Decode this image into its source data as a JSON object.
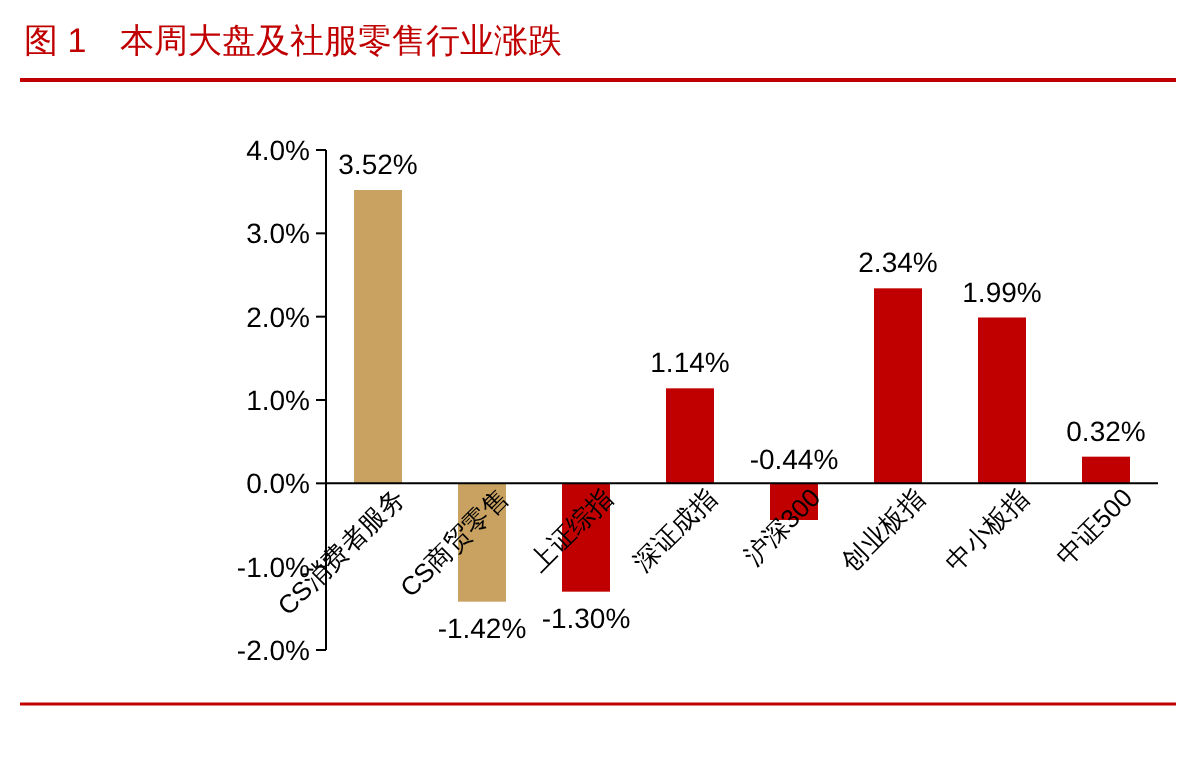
{
  "chart_data": {
    "type": "bar",
    "title": "图 1　本周大盘及社服零售行业涨跌",
    "categories": [
      "CS消费者服务",
      "CS商贸零售",
      "上证综指",
      "深证成指",
      "沪深300",
      "创业板指",
      "中小板指",
      "中证500"
    ],
    "values": [
      3.52,
      -1.42,
      -1.3,
      1.14,
      -0.44,
      2.34,
      1.99,
      0.32
    ],
    "colors": [
      "#c9a262",
      "#c9a262",
      "#c00000",
      "#c00000",
      "#c00000",
      "#c00000",
      "#c00000",
      "#c00000"
    ],
    "value_labels": [
      "3.52%",
      "-1.42%",
      "-1.30%",
      "1.14%",
      "-0.44%",
      "2.34%",
      "1.99%",
      "0.32%"
    ],
    "ylim": [
      -2,
      4
    ],
    "yticks": [
      {
        "value": -2,
        "label": "-2.0%"
      },
      {
        "value": -1,
        "label": "-1.0%"
      },
      {
        "value": 0,
        "label": "0.0%"
      },
      {
        "value": 1,
        "label": "1.0%"
      },
      {
        "value": 2,
        "label": "2.0%"
      },
      {
        "value": 3,
        "label": "3.0%"
      },
      {
        "value": 4,
        "label": "4.0%"
      }
    ],
    "grid": false
  }
}
